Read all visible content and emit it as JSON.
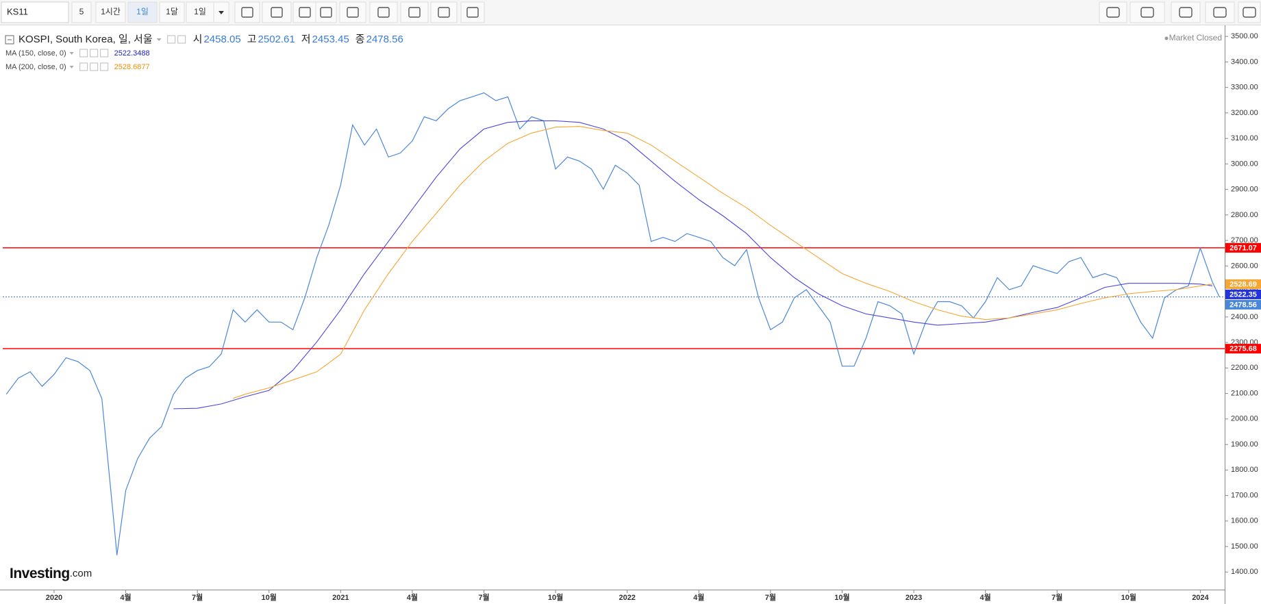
{
  "toolbar": {
    "symbol": "KS11",
    "buttons": [
      "5",
      "1시간",
      "1일",
      "1달",
      "1일"
    ],
    "active": 2
  },
  "logo": {
    "name": "Investing",
    "suffix": ".com"
  },
  "chart_data": {
    "type": "line",
    "title": "KOSPI, South Korea, 일, 서울",
    "quotes": [
      {
        "label": "시",
        "value": 2458.05
      },
      {
        "label": "고",
        "value": 2502.61
      },
      {
        "label": "저",
        "value": 2453.45
      },
      {
        "label": "종",
        "value": 2478.56
      }
    ],
    "status": "Market Closed",
    "series": [
      {
        "color": "#4a86d8",
        "x": [
          -2,
          -1.5,
          -1,
          -0.5,
          0,
          0.5,
          1,
          1.5,
          2,
          2.5,
          2.63,
          3,
          3.5,
          4,
          4.5,
          5,
          5.5,
          6,
          6.5,
          7,
          7.5,
          8,
          8.5,
          9,
          9.5,
          10,
          10.5,
          11,
          11.5,
          12,
          12.5,
          13,
          13.5,
          14,
          14.5,
          15,
          15.5,
          16,
          16.5,
          17,
          17.5,
          18,
          18.5,
          19,
          19.5,
          20,
          20.5,
          21,
          21.5,
          22,
          22.5,
          23,
          23.5,
          24,
          24.5,
          25,
          25.5,
          26,
          26.5,
          27,
          27.5,
          28,
          28.5,
          29,
          29.5,
          30,
          30.5,
          31,
          31.5,
          32,
          32.5,
          33,
          33.5,
          34,
          34.5,
          35,
          35.5,
          36,
          36.5,
          37,
          37.5,
          38,
          38.5,
          39,
          39.5,
          40,
          40.5,
          41,
          41.5,
          42,
          42.5,
          43,
          43.5,
          44,
          44.5,
          45,
          45.5,
          46,
          46.5,
          47,
          47.5,
          48,
          48.5,
          48.8
        ],
        "values": [
          2097,
          2160,
          2185,
          2128,
          2175,
          2240,
          2225,
          2190,
          2080,
          1600,
          1466,
          1720,
          1845,
          1925,
          1970,
          2097,
          2160,
          2190,
          2205,
          2255,
          2428,
          2380,
          2428,
          2380,
          2380,
          2350,
          2475,
          2633,
          2759,
          2917,
          3153,
          3074,
          3137,
          3027,
          3043,
          3090,
          3185,
          3169,
          3216,
          3248,
          3263,
          3279,
          3248,
          3263,
          3137,
          3185,
          3169,
          2980,
          3027,
          3011,
          2980,
          2901,
          2995,
          2964,
          2917,
          2696,
          2712,
          2696,
          2727,
          2712,
          2696,
          2633,
          2601,
          2664,
          2475,
          2350,
          2380,
          2475,
          2507,
          2444,
          2380,
          2207,
          2207,
          2317,
          2460,
          2444,
          2412,
          2255,
          2380,
          2460,
          2460,
          2444,
          2396,
          2460,
          2554,
          2507,
          2522,
          2601,
          2585,
          2570,
          2617,
          2633,
          2554,
          2570,
          2554,
          2475,
          2380,
          2317,
          2475,
          2507,
          2522,
          2670,
          2538,
          2478.56
        ]
      },
      {
        "name": "MA (150, close, 0)",
        "legend_value": 2522.3488,
        "color": "#4b45e0",
        "value_color": "#1c1cc8",
        "x": [
          5,
          6,
          7,
          8,
          9,
          10,
          11,
          12,
          13,
          14,
          15,
          16,
          17,
          18,
          19,
          20,
          21,
          22,
          23,
          24,
          25,
          26,
          27,
          28,
          29,
          30,
          31,
          32,
          33,
          34,
          35,
          36,
          37,
          38,
          39,
          40,
          41,
          42,
          43,
          44,
          45,
          46,
          47,
          48,
          48.5
        ],
        "values": [
          2040,
          2042,
          2059,
          2087,
          2112,
          2191,
          2302,
          2428,
          2570,
          2696,
          2822,
          2948,
          3059,
          3137,
          3163,
          3169,
          3169,
          3163,
          3137,
          3090,
          3011,
          2932,
          2860,
          2797,
          2727,
          2633,
          2554,
          2491,
          2444,
          2412,
          2396,
          2380,
          2368,
          2374,
          2380,
          2396,
          2418,
          2437,
          2475,
          2516,
          2532,
          2532,
          2532,
          2529,
          2522
        ]
      },
      {
        "name": "MA (200, close, 0)",
        "legend_value": 2528.6877,
        "color": "#f7a631",
        "value_color": "#f08c00",
        "x": [
          7.5,
          8,
          9,
          10,
          11,
          12,
          13,
          14,
          15,
          16,
          17,
          18,
          19,
          20,
          21,
          22,
          23,
          24,
          25,
          26,
          27,
          28,
          29,
          30,
          31,
          32,
          33,
          34,
          35,
          36,
          37,
          38,
          39,
          40,
          41,
          42,
          43,
          44,
          45,
          46,
          47,
          48,
          48.5
        ],
        "values": [
          2081,
          2097,
          2122,
          2153,
          2185,
          2254,
          2428,
          2570,
          2696,
          2806,
          2917,
          3011,
          3081,
          3121,
          3144,
          3147,
          3131,
          3121,
          3074,
          3011,
          2948,
          2885,
          2828,
          2759,
          2696,
          2633,
          2570,
          2532,
          2500,
          2460,
          2428,
          2403,
          2390,
          2396,
          2412,
          2428,
          2453,
          2475,
          2491,
          2500,
          2507,
          2522,
          2529
        ]
      }
    ],
    "levels": [
      {
        "value": 2671.07,
        "color": "#ff0000",
        "style": "solid"
      },
      {
        "value": 2275.68,
        "color": "#ff0000",
        "style": "solid"
      },
      {
        "value": 2478.56,
        "color": "#3a6fd0",
        "style": "dotted",
        "label_color": "#4a86d8"
      }
    ],
    "markers": [
      {
        "value": 2528.69,
        "color": "#f7a631"
      },
      {
        "value": 2522.35,
        "color": "#2233dd"
      }
    ],
    "xlim": [
      -2.15,
      49.02
    ],
    "xticks": [
      {
        "value": 0,
        "label": "2020"
      },
      {
        "value": 3,
        "label": "4월"
      },
      {
        "value": 6,
        "label": "7월"
      },
      {
        "value": 9,
        "label": "10월"
      },
      {
        "value": 12,
        "label": "2021"
      },
      {
        "value": 15,
        "label": "4월"
      },
      {
        "value": 18,
        "label": "7월"
      },
      {
        "value": 21,
        "label": "10월"
      },
      {
        "value": 24,
        "label": "2022"
      },
      {
        "value": 27,
        "label": "4월"
      },
      {
        "value": 30,
        "label": "7월"
      },
      {
        "value": 33,
        "label": "10월"
      },
      {
        "value": 36,
        "label": "2023"
      },
      {
        "value": 39,
        "label": "4월"
      },
      {
        "value": 42,
        "label": "7월"
      },
      {
        "value": 45,
        "label": "10월"
      },
      {
        "value": 48,
        "label": "2024"
      }
    ],
    "ylim": [
      1331,
      3538
    ],
    "yticks": [
      {
        "value": 1400,
        "label": "1400.00"
      },
      {
        "value": 1500,
        "label": "1500.00"
      },
      {
        "value": 1600,
        "label": "1600.00"
      },
      {
        "value": 1700,
        "label": "1700.00"
      },
      {
        "value": 1800,
        "label": "1800.00"
      },
      {
        "value": 1900,
        "label": "1900.00"
      },
      {
        "value": 2000,
        "label": "2000.00"
      },
      {
        "value": 2100,
        "label": "2100.00"
      },
      {
        "value": 2200,
        "label": "2200.00"
      },
      {
        "value": 2300,
        "label": "2300.00"
      },
      {
        "value": 2400,
        "label": "2400.00"
      },
      {
        "value": 2500,
        "label": "2500.00"
      },
      {
        "value": 2600,
        "label": "2600.00"
      },
      {
        "value": 2700,
        "label": "2700.00"
      },
      {
        "value": 2800,
        "label": "2800.00"
      },
      {
        "value": 2900,
        "label": "2900.00"
      },
      {
        "value": 3000,
        "label": "3000.00"
      },
      {
        "value": 3100,
        "label": "3100.00"
      },
      {
        "value": 3200,
        "label": "3200.00"
      },
      {
        "value": 3300,
        "label": "3300.00"
      },
      {
        "value": 3400,
        "label": "3400.00"
      },
      {
        "value": 3500,
        "label": "3500.00"
      }
    ],
    "grid": false
  }
}
